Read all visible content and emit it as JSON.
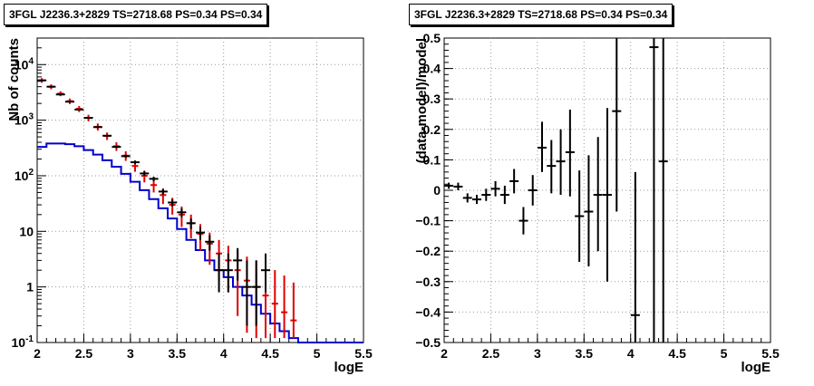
{
  "colors": {
    "data": "#000000",
    "model": "#0000cc",
    "sample": "#e00000",
    "grid": "#9a9a9a"
  },
  "chart_data": [
    {
      "type": "histogram",
      "title": "3FGL J2236.3+2829 TS=2718.68 PS=0.34 PS=0.34",
      "xlabel": "logE",
      "ylabel": "Nb of counts",
      "xlim": [
        2,
        5.5
      ],
      "ylim": [
        0.1,
        30000
      ],
      "yscale": "log",
      "grid": true,
      "x_ticks": [
        "2",
        "2.5",
        "3",
        "3.5",
        "4",
        "4.5",
        "5",
        "5.5"
      ],
      "y_ticks": [
        "10^{-1}",
        "1",
        "10",
        "10^{2}",
        "10^{3}",
        "10^{4}"
      ],
      "series": [
        {
          "role": "model",
          "style": "step",
          "color": "#0000cc",
          "x": [
            2.05,
            2.15,
            2.25,
            2.35,
            2.45,
            2.55,
            2.65,
            2.75,
            2.85,
            2.95,
            3.05,
            3.15,
            3.25,
            3.35,
            3.45,
            3.55,
            3.65,
            3.75,
            3.85,
            3.95,
            4.05,
            4.15,
            4.25,
            4.35,
            4.45,
            4.55,
            4.65,
            4.75,
            4.85,
            4.95,
            5.05,
            5.15,
            5.25,
            5.35,
            5.45
          ],
          "values": [
            330,
            380,
            380,
            370,
            340,
            290,
            240,
            190,
            145,
            108,
            78,
            55,
            38,
            26,
            17,
            11,
            7,
            4.6,
            3.0,
            2.0,
            1.5,
            1.0,
            0.7,
            0.48,
            0.33,
            0.22,
            0.16,
            0.12,
            0.1,
            0.1,
            0.1,
            0.1,
            0.1,
            0.1,
            0.1
          ]
        },
        {
          "role": "sample",
          "style": "errorbar",
          "color": "#e00000",
          "x": [
            2.05,
            2.15,
            2.25,
            2.35,
            2.45,
            2.55,
            2.65,
            2.75,
            2.85,
            2.95,
            3.05,
            3.15,
            3.25,
            3.35,
            3.45,
            3.55,
            3.65,
            3.75,
            3.85,
            3.95,
            4.05,
            4.15,
            4.25,
            4.35,
            4.45,
            4.55,
            4.65,
            4.75
          ],
          "values": [
            5200,
            4000,
            3000,
            2200,
            1600,
            1100,
            760,
            520,
            340,
            230,
            150,
            100,
            68,
            45,
            30,
            20,
            14,
            9,
            6,
            4,
            3,
            2,
            1.3,
            1,
            0.7,
            0.5,
            0.35,
            0.25
          ],
          "err_low": [
            4700,
            3600,
            2700,
            1950,
            1400,
            950,
            650,
            440,
            280,
            185,
            118,
            76,
            50,
            31,
            20,
            12,
            7.5,
            4.5,
            2.5,
            1.3,
            0.8,
            0.3,
            0.15,
            0.12,
            0.12,
            0.12,
            0.12,
            0.12
          ],
          "err_high": [
            5700,
            4400,
            3300,
            2450,
            1800,
            1250,
            870,
            600,
            400,
            275,
            182,
            124,
            86,
            59,
            40,
            28,
            20,
            13.5,
            9.5,
            7,
            5.5,
            4.5,
            3.5,
            3,
            2.5,
            2,
            1.6,
            1.2
          ]
        },
        {
          "role": "data",
          "style": "errorbar",
          "color": "#000000",
          "x": [
            2.05,
            2.15,
            2.25,
            2.35,
            2.45,
            2.55,
            2.65,
            2.75,
            2.85,
            2.95,
            3.05,
            3.15,
            3.25,
            3.35,
            3.45,
            3.55,
            3.65,
            3.75,
            3.85,
            3.95,
            4.05,
            4.15,
            4.25,
            4.35,
            4.45
          ],
          "values": [
            5200,
            4000,
            2900,
            2150,
            1550,
            1100,
            750,
            525,
            330,
            225,
            175,
            110,
            88,
            52,
            33,
            22,
            14,
            9.5,
            6.5,
            2,
            2,
            3,
            1,
            1,
            2
          ],
          "err_low": [
            5120,
            3940,
            2850,
            2100,
            1510,
            1070,
            725,
            505,
            315,
            212,
            163,
            100,
            80,
            46,
            28,
            18,
            11,
            7,
            4.5,
            0.8,
            0.8,
            1.3,
            0.2,
            0.2,
            0.8
          ],
          "err_high": [
            5280,
            4060,
            2950,
            2200,
            1590,
            1130,
            775,
            545,
            345,
            238,
            188,
            120,
            96,
            58,
            38,
            26,
            17,
            12,
            8.5,
            4,
            4,
            5,
            3,
            3,
            4
          ]
        }
      ]
    },
    {
      "type": "errorbar",
      "title": "3FGL J2236.3+2829 TS=2718.68 PS=0.34 PS=0.34",
      "xlabel": "logE",
      "ylabel": "(data-model)/model",
      "xlim": [
        2,
        5.5
      ],
      "ylim": [
        -0.5,
        0.5
      ],
      "grid": true,
      "x_ticks": [
        "2",
        "2.5",
        "3",
        "3.5",
        "4",
        "4.5",
        "5",
        "5.5"
      ],
      "y_ticks": [
        "−0.5",
        "−0.4",
        "−0.3",
        "−0.2",
        "−0.1",
        "0",
        "0.1",
        "0.2",
        "0.3",
        "0.4",
        "0.5"
      ],
      "series": [
        {
          "role": "residual",
          "color": "#000000",
          "x": [
            2.05,
            2.15,
            2.25,
            2.35,
            2.45,
            2.55,
            2.65,
            2.75,
            2.85,
            2.95,
            3.05,
            3.15,
            3.25,
            3.35,
            3.45,
            3.55,
            3.65,
            3.75,
            3.85,
            4.05,
            4.25,
            4.35
          ],
          "values": [
            0.015,
            0.012,
            -0.025,
            -0.03,
            -0.015,
            0.005,
            -0.015,
            0.03,
            -0.1,
            0.0,
            0.14,
            0.08,
            0.095,
            0.125,
            -0.085,
            -0.07,
            -0.015,
            -0.015,
            0.26,
            -0.41,
            0.47,
            0.095
          ],
          "err_low": [
            0.005,
            0.0,
            -0.04,
            -0.045,
            -0.035,
            -0.02,
            -0.045,
            -0.01,
            -0.145,
            -0.05,
            0.06,
            -0.01,
            -0.015,
            -0.02,
            -0.235,
            -0.25,
            -0.2,
            -0.3,
            -0.07,
            -0.5,
            -0.5,
            -0.5
          ],
          "err_high": [
            0.025,
            0.025,
            -0.01,
            -0.015,
            0.005,
            0.03,
            0.015,
            0.07,
            -0.055,
            0.05,
            0.225,
            0.165,
            0.2,
            0.265,
            0.065,
            0.115,
            0.175,
            0.27,
            0.5,
            0.06,
            0.5,
            0.5
          ]
        }
      ]
    }
  ]
}
